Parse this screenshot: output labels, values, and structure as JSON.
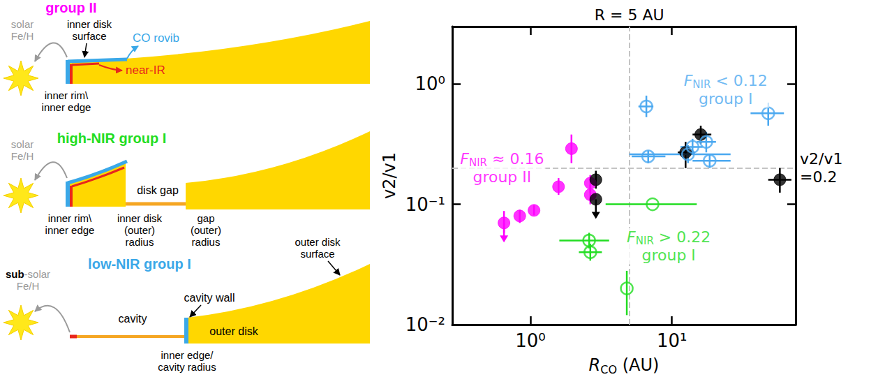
{
  "diagram": {
    "panels": [
      {
        "title": "group II",
        "metallicity": [
          "solar",
          "Fe/H"
        ],
        "surface_label": [
          "inner disk",
          "surface"
        ],
        "co_label": "CO rovib",
        "nir_label": "near-IR",
        "rim_label": [
          "inner rim\\",
          "inner edge"
        ]
      },
      {
        "title": "high-NIR group I",
        "metallicity": [
          "solar",
          "Fe/H"
        ],
        "gap_label": "disk gap",
        "rim_label": [
          "inner rim\\",
          "inner edge"
        ],
        "inner_disk_label": [
          "inner disk",
          "(outer)",
          "radius"
        ],
        "gap_radius_label": [
          "gap",
          "(outer)",
          "radius"
        ]
      },
      {
        "title": "low-NIR group I",
        "metallicity": [
          "sub-solar",
          "Fe/H"
        ],
        "metallicity_emphasis": "sub",
        "surface_label": [
          "outer disk",
          "surface"
        ],
        "cavity_label": "cavity",
        "wall_label": "cavity wall",
        "outer_disk_label": "outer disk",
        "edge_label": [
          "inner edge/",
          "cavity radius"
        ]
      }
    ]
  },
  "chart_data": {
    "type": "scatter",
    "log": true,
    "grid": false,
    "xlim": [
      0.28,
      75
    ],
    "ylim": [
      0.01,
      3
    ],
    "xticks": [
      {
        "value": 1,
        "label": "10⁰"
      },
      {
        "value": 10,
        "label": "10¹"
      }
    ],
    "yticks": [
      {
        "value": 0.01,
        "label": "10⁻²"
      },
      {
        "value": 0.1,
        "label": "10⁻¹"
      },
      {
        "value": 1,
        "label": "10⁰"
      }
    ],
    "xlabel": {
      "main": "R",
      "sub": "CO",
      "rest": " (AU)"
    },
    "ylabel": "v2/v1",
    "vline": {
      "x": 5,
      "label": "R = 5 AU"
    },
    "hline": {
      "y": 0.2,
      "label": "v2/v1\n=0.2"
    },
    "series": [
      {
        "color": "#ff00ff",
        "marker": "filled",
        "x": [
          0.65,
          0.84,
          1.06,
          1.58,
          1.95,
          2.65,
          2.65
        ],
        "values": [
          0.07,
          0.08,
          0.089,
          0.14,
          0.29,
          0.15,
          0.12
        ],
        "x_err": [
          null,
          null,
          null,
          null,
          null,
          null,
          null
        ],
        "y_err": [
          [
            0.058,
            0.088
          ],
          [
            0.07,
            0.09
          ],
          [
            0.081,
            0.098
          ],
          [
            0.12,
            0.165
          ],
          [
            0.22,
            0.38
          ],
          [
            0.125,
            0.175
          ],
          [
            0.1,
            0.145
          ]
        ],
        "upper_limit": [
          true,
          false,
          false,
          false,
          false,
          false,
          false
        ]
      },
      {
        "color": "#000000",
        "marker": "filled",
        "x": [
          2.9,
          2.9,
          12.5,
          16,
          58
        ],
        "values": [
          0.16,
          0.11,
          0.27,
          0.38,
          0.16
        ],
        "x_err": [
          null,
          null,
          [
            11,
            14.5
          ],
          [
            14,
            19
          ],
          [
            48,
            70
          ]
        ],
        "y_err": [
          [
            0.135,
            0.19
          ],
          null,
          [
            0.2,
            0.33
          ],
          [
            0.32,
            0.45
          ],
          [
            0.125,
            0.2
          ]
        ],
        "upper_limit": [
          false,
          true,
          false,
          false,
          false
        ]
      },
      {
        "color": "#4aa8f0",
        "marker": "open",
        "x": [
          6.6,
          6.8,
          13,
          14,
          17.5,
          18.5,
          48
        ],
        "values": [
          0.65,
          0.25,
          0.26,
          0.3,
          0.33,
          0.23,
          0.57
        ],
        "x_err": [
          [
            5.8,
            7.4
          ],
          [
            5.2,
            9
          ],
          [
            5,
            26
          ],
          [
            11.5,
            16.5
          ],
          [
            15,
            20.5
          ],
          [
            14,
            26
          ],
          [
            36,
            62
          ]
        ],
        "y_err": [
          [
            0.53,
            0.8
          ],
          [
            0.22,
            0.28
          ],
          [
            0.22,
            0.31
          ],
          [
            0.26,
            0.35
          ],
          [
            0.27,
            0.4
          ],
          [
            0.2,
            0.26
          ],
          [
            0.45,
            0.7
          ]
        ],
        "upper_limit": [
          false,
          false,
          false,
          false,
          false,
          false,
          false
        ]
      },
      {
        "color": "#22dd22",
        "marker": "open",
        "x": [
          2.6,
          2.65,
          4.8,
          7.3
        ],
        "values": [
          0.05,
          0.04,
          0.02,
          0.1
        ],
        "x_err": [
          [
            1.6,
            3.6
          ],
          [
            2.2,
            3.2
          ],
          null,
          [
            3.4,
            15
          ]
        ],
        "y_err": [
          [
            0.043,
            0.058
          ],
          [
            0.034,
            0.047
          ],
          [
            0.012,
            0.028
          ],
          null
        ],
        "upper_limit": [
          false,
          false,
          false,
          false
        ]
      }
    ],
    "annotations": [
      {
        "parts": [
          "F",
          "NIR",
          " < 0.12"
        ],
        "second_line": "group I",
        "color": "#4aa8f0",
        "x": 24,
        "y": 0.9
      },
      {
        "parts": [
          "F",
          "NIR",
          " ≈ 0.16"
        ],
        "second_line": "group II",
        "color": "#ff00ff",
        "x": 0.63,
        "y": 0.2
      },
      {
        "parts": [
          "F",
          "NIR",
          " > 0.22"
        ],
        "second_line": "group I",
        "color": "#22dd22",
        "x": 9.5,
        "y": 0.045
      }
    ]
  }
}
